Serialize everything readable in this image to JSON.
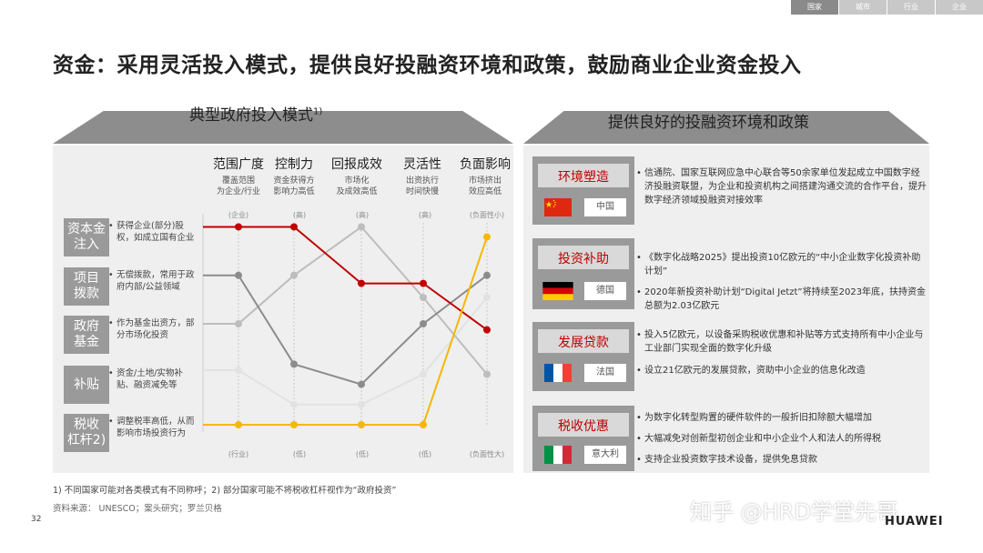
{
  "nav": {
    "tabs": [
      "国家",
      "城市",
      "行业",
      "企业"
    ],
    "active": 0
  },
  "title": "资金：采用灵活投入模式，提供良好投融资环境和政策，鼓励商业企业资金投入",
  "left": {
    "header": "典型政府投入模式",
    "header_sup": "1)",
    "columns": [
      {
        "title": "范围广度",
        "sub1": "覆盖范围",
        "sub2": "为企业/行业",
        "top": "(企业)",
        "bottom": "(行业)"
      },
      {
        "title": "控制力",
        "sub1": "资金获得方",
        "sub2": "影响力高低",
        "top": "(高)",
        "bottom": "(低)"
      },
      {
        "title": "回报成效",
        "sub1": "市场化",
        "sub2": "及成效高低",
        "top": "(高)",
        "bottom": "(低)"
      },
      {
        "title": "灵活性",
        "sub1": "出资执行",
        "sub2": "时间快慢",
        "top": "(高)",
        "bottom": "(低)"
      },
      {
        "title": "负面影响",
        "sub1": "市场挤出",
        "sub2": "效应高低",
        "top": "(负面性小)",
        "bottom": "(负面性大)"
      }
    ],
    "rows": [
      {
        "label1": "资本金",
        "label2": "注入",
        "desc": "获得企业(部分)股权，如成立国有企业"
      },
      {
        "label1": "项目",
        "label2": "拨款",
        "desc": "无偿拨款，常用于政府内部/公益领域"
      },
      {
        "label1": "政府",
        "label2": "基金",
        "desc": "作为基金出资方，部分市场化投资"
      },
      {
        "label1": "补贴",
        "label2": "",
        "desc": "资金/土地/实物补贴、融资减免等"
      },
      {
        "label1": "税收",
        "label2": "杠杆2)",
        "desc": "调整税率高低，从而影响市场投资行为"
      }
    ]
  },
  "chart_data": {
    "type": "line",
    "categories": [
      "范围广度",
      "控制力",
      "回报成效",
      "灵活性",
      "负面影响"
    ],
    "ylim": [
      0,
      1
    ],
    "series": [
      {
        "name": "资本金注入",
        "color": "#c00000",
        "values": [
          0.98,
          0.98,
          0.7,
          0.7,
          0.47
        ]
      },
      {
        "name": "项目拨款",
        "color": "#8c8c8c",
        "values": [
          0.74,
          0.3,
          0.2,
          0.5,
          0.74
        ]
      },
      {
        "name": "政府基金",
        "color": "#bdbdbd",
        "values": [
          0.5,
          0.74,
          0.98,
          0.63,
          0.25
        ]
      },
      {
        "name": "补贴",
        "color": "#e2e2e2",
        "values": [
          0.27,
          0.1,
          0.1,
          0.25,
          0.63
        ]
      },
      {
        "name": "税收杠杆",
        "color": "#f5b800",
        "values": [
          0.0,
          0.0,
          0.0,
          0.0,
          0.93
        ]
      }
    ]
  },
  "right": {
    "header": "提供良好的投融资环境和政策",
    "blocks": [
      {
        "title": "环境塑造",
        "country": "中国",
        "flag": "china",
        "bullets": [
          "信通院、国家互联网应急中心联合等50余家单位发起成立中国数字经济投融资联盟，为企业和投资机构之间搭建沟通交流的合作平台，提升数字经济领域投融资对接效率"
        ]
      },
      {
        "title": "投资补助",
        "country": "德国",
        "flag": "germany",
        "bullets": [
          "《数字化战略2025》提出投资10亿欧元的“中小企业数字化投资补助计划”",
          "2020年新投资补助计划“Digital Jetzt”将持续至2023年底，扶持资金总额为2.03亿欧元"
        ]
      },
      {
        "title": "发展贷款",
        "country": "法国",
        "flag": "france",
        "bullets": [
          "投入5亿欧元，以设备采购税收优惠和补贴等方式支持所有中小企业与工业部门实现全面的数字化升级",
          "设立21亿欧元的发展贷款，资助中小企业的信息化改造"
        ]
      },
      {
        "title": "税收优惠",
        "country": "意大利",
        "flag": "italy",
        "bullets": [
          "为数字化转型购置的硬件软件的一般折旧扣除额大幅增加",
          "大幅减免对创新型初创企业和中小企业个人和法人的所得税",
          "支持企业投资数字技术设备，提供免息贷款"
        ]
      }
    ]
  },
  "footnote": "1) 不同国家可能对各类模式有不同称呼；2) 部分国家可能不将税收杠杆视作为“政府投资”",
  "source": "资料来源： UNESCO；案头研究；罗兰贝格",
  "page_number": "32",
  "watermark": "知乎 @HRD学堂先哥",
  "logo": "HUAWEI"
}
